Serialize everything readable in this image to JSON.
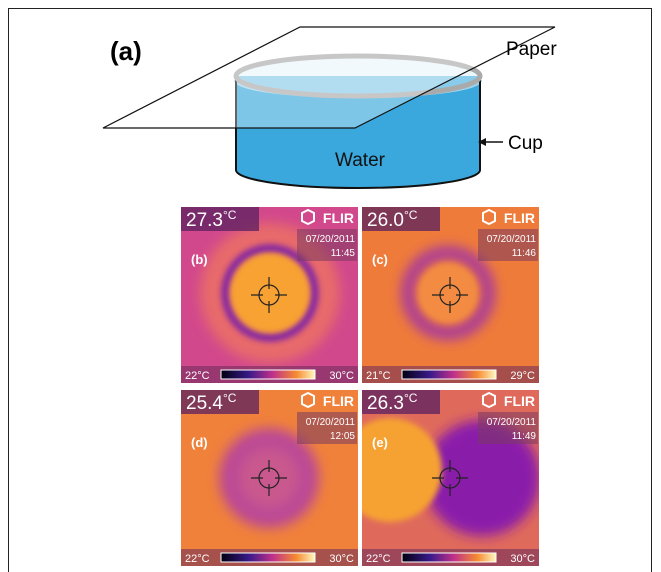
{
  "panel_a": {
    "label": "(a)",
    "paper": "Paper",
    "cup": "Cup",
    "water": "Water"
  },
  "thermal_images": [
    {
      "label": "(b)",
      "temperature": "27.3",
      "unit": "°C",
      "brand": "FLIR",
      "date": "07/20/2011",
      "time": "11:45",
      "scale_min": "22°C",
      "scale_max": "30°C"
    },
    {
      "label": "(c)",
      "temperature": "26.0",
      "unit": "°C",
      "brand": "FLIR",
      "date": "07/20/2011",
      "time": "11:46",
      "scale_min": "21°C",
      "scale_max": "29°C"
    },
    {
      "label": "(d)",
      "temperature": "25.4",
      "unit": "°C",
      "brand": "FLIR",
      "date": "07/20/2011",
      "time": "12:05",
      "scale_min": "22°C",
      "scale_max": "30°C"
    },
    {
      "label": "(e)",
      "temperature": "26.3",
      "unit": "°C",
      "brand": "FLIR",
      "date": "07/20/2011",
      "time": "11:49",
      "scale_min": "22°C",
      "scale_max": "30°C"
    }
  ]
}
